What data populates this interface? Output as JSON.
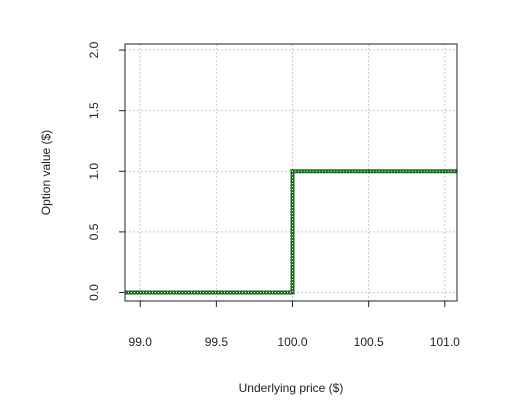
{
  "chart_data": {
    "type": "line",
    "title": "",
    "xlabel": "Underlying price ($)",
    "ylabel": "Option value ($)",
    "xlim": [
      98.9,
      101.08
    ],
    "ylim": [
      -0.07,
      2.05
    ],
    "x_ticks": [
      "99.0",
      "99.5",
      "100.0",
      "100.5",
      "101.0"
    ],
    "y_ticks": [
      "0.0",
      "0.5",
      "1.0",
      "1.5",
      "2.0"
    ],
    "grid": true,
    "series": [
      {
        "color": "#1a6b1a",
        "highlight_color": "#ffffff",
        "line_style": "solid with dotted white overlay",
        "points": [
          {
            "x": 98.9,
            "y": 0
          },
          {
            "x": 100.0,
            "y": 0
          },
          {
            "x": 100.0,
            "y": 1
          },
          {
            "x": 101.08,
            "y": 1
          }
        ]
      }
    ]
  }
}
